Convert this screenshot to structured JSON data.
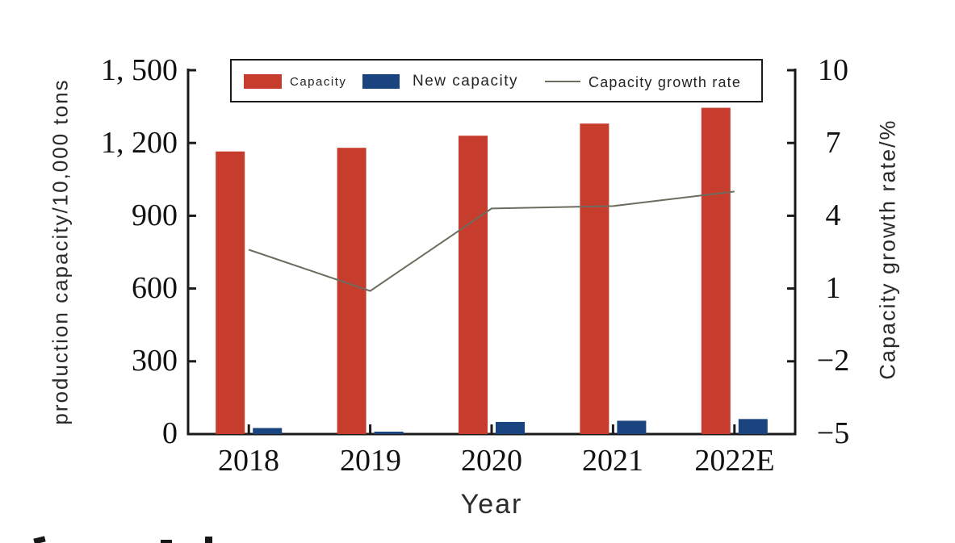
{
  "colors": {
    "capacity_bar": "#C63C2D",
    "new_capacity_bar": "#1A4480",
    "growth_line": "#6E6C5E",
    "axis": "#1A1A1A"
  },
  "chart_data": {
    "type": "bar",
    "subtype": "bar+line combo",
    "categories": [
      "2018",
      "2019",
      "2020",
      "2021",
      "2022E"
    ],
    "series": [
      {
        "name": "Capacity",
        "type": "bar",
        "axis": "left",
        "values": [
          1165,
          1180,
          1230,
          1280,
          1345
        ]
      },
      {
        "name": "New capacity",
        "type": "bar",
        "axis": "left",
        "values": [
          25,
          10,
          50,
          55,
          62
        ]
      },
      {
        "name": "Capacity growth rate",
        "type": "line",
        "axis": "right",
        "values": [
          2.6,
          0.9,
          4.3,
          4.4,
          5.0
        ]
      }
    ],
    "xlabel": "Year",
    "ylabel_left": "production capacity/10,000 tons",
    "ylabel_right": "Capacity growth rate/%",
    "ylim_left": [
      0,
      1500
    ],
    "ylim_right": [
      -5,
      10
    ],
    "yticks_left_labels": [
      "1, 500",
      "1, 200",
      "900",
      "600",
      "300",
      "0"
    ],
    "yticks_left_values": [
      1500,
      1200,
      900,
      600,
      300,
      0
    ],
    "yticks_right_labels": [
      "10",
      "7",
      "4",
      "1",
      "−2",
      "−5"
    ],
    "yticks_right_values": [
      10,
      7,
      4,
      1,
      -2,
      -5
    ],
    "legend_position": "top",
    "grid": false
  }
}
